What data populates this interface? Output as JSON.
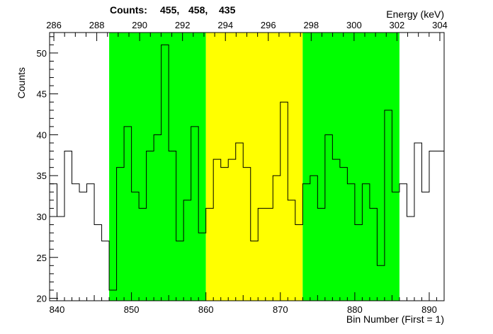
{
  "chart_data": {
    "type": "histogram",
    "title": "",
    "counts_label": "Counts:",
    "counts_values": [
      "455,",
      "458,",
      "435"
    ],
    "ylabel": "Counts",
    "xlabel": "Bin Number (First = 1)",
    "x2label": "Energy (keV)",
    "xlim": [
      839,
      892
    ],
    "ylim": [
      19.7,
      52.5
    ],
    "x_ticks": [
      840,
      850,
      860,
      870,
      880,
      890
    ],
    "y_ticks": [
      20,
      25,
      30,
      35,
      40,
      45,
      50
    ],
    "energy_axis": {
      "range": [
        285.8,
        304.2
      ],
      "ticks": [
        286,
        288,
        290,
        292,
        294,
        296,
        298,
        300,
        302,
        304
      ]
    },
    "regions": [
      {
        "name": "left-background",
        "from": 847,
        "to": 860,
        "color": "#00ff00"
      },
      {
        "name": "peak",
        "from": 860,
        "to": 873,
        "color": "#ffff00"
      },
      {
        "name": "right-background",
        "from": 873,
        "to": 886,
        "color": "#00ff00"
      }
    ],
    "bin_edges_start": 839,
    "bin_width": 1,
    "values": [
      34,
      30,
      38,
      34,
      33,
      34,
      29,
      27,
      21,
      36,
      41,
      33,
      31,
      38,
      40,
      51,
      38,
      27,
      32,
      41,
      28,
      31,
      37,
      36,
      37,
      39,
      36,
      27,
      31,
      31,
      35,
      44,
      32,
      29,
      34,
      35,
      31,
      40,
      37,
      36,
      34,
      29,
      34,
      31,
      24,
      43,
      33,
      34,
      30,
      39,
      33,
      38,
      38
    ]
  }
}
